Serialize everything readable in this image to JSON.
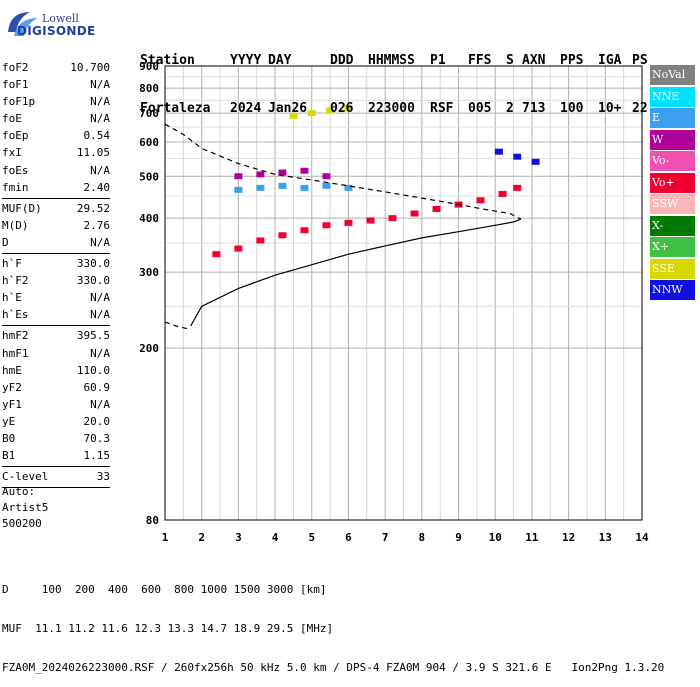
{
  "logo": {
    "line1": "Lowell",
    "line2": "DIGISONDE"
  },
  "header": {
    "labels": [
      "Station",
      "YYYY",
      "DAY",
      "DDD",
      "HHMMSS",
      "P1",
      "FFS",
      "S",
      "AXN",
      "PPS",
      "IGA",
      "PS"
    ],
    "values": [
      "Fortaleza",
      "2024",
      "Jan26",
      "026",
      "223000",
      "RSF",
      "005",
      "2",
      "713",
      "100",
      "10+",
      "22"
    ]
  },
  "params": {
    "group1": [
      {
        "name": "foF2",
        "value": "10.700"
      },
      {
        "name": "foF1",
        "value": "N/A"
      },
      {
        "name": "foF1p",
        "value": "N/A"
      },
      {
        "name": "foE",
        "value": "N/A"
      },
      {
        "name": "foEp",
        "value": "0.54"
      },
      {
        "name": "fxI",
        "value": "11.05"
      },
      {
        "name": "foEs",
        "value": "N/A"
      },
      {
        "name": "fmin",
        "value": "2.40"
      }
    ],
    "group2": [
      {
        "name": "MUF(D)",
        "value": "29.52"
      },
      {
        "name": "M(D)",
        "value": "2.76"
      },
      {
        "name": "D",
        "value": "N/A"
      }
    ],
    "group3": [
      {
        "name": "h`F",
        "value": "330.0"
      },
      {
        "name": "h`F2",
        "value": "330.0"
      },
      {
        "name": "h`E",
        "value": "N/A"
      },
      {
        "name": "h`Es",
        "value": "N/A"
      }
    ],
    "group4": [
      {
        "name": "hmF2",
        "value": "395.5"
      },
      {
        "name": "hmF1",
        "value": "N/A"
      },
      {
        "name": "hmE",
        "value": "110.0"
      },
      {
        "name": "yF2",
        "value": "60.9"
      },
      {
        "name": "yF1",
        "value": "N/A"
      },
      {
        "name": "yE",
        "value": "20.0"
      },
      {
        "name": "B0",
        "value": "70.3"
      },
      {
        "name": "B1",
        "value": "1.15"
      }
    ],
    "group5": [
      {
        "name": "C-level",
        "value": "33"
      }
    ]
  },
  "auto": {
    "line1": "Auto:",
    "line2": "Artist5",
    "line3": "500200"
  },
  "legend": [
    {
      "label": "NoVal",
      "color": "#808080"
    },
    {
      "label": "NNE",
      "color": "#00e0ff"
    },
    {
      "label": "E",
      "color": "#3ca0f0"
    },
    {
      "label": "W",
      "color": "#b0009c"
    },
    {
      "label": "Vo-",
      "color": "#f050b0"
    },
    {
      "label": "Vo+",
      "color": "#f00030"
    },
    {
      "label": "SSW",
      "color": "#f8b8b8"
    },
    {
      "label": "X-",
      "color": "#007a00"
    },
    {
      "label": "X+",
      "color": "#40c040"
    },
    {
      "label": "SSE",
      "color": "#d8d800"
    },
    {
      "label": "NNW",
      "color": "#1010e0"
    }
  ],
  "footer": {
    "line1": "D     100  200  400  600  800 1000 1500 3000 [km]",
    "line2": "MUF  11.1 11.2 11.6 12.3 13.3 14.7 18.9 29.5 [MHz]",
    "line3": "FZA0M_2024026223000.RSF / 260fx256h 50 kHz 5.0 km / DPS-4 FZA0M 904 / 3.9 S 321.6 E   Ion2Png 1.3.20"
  },
  "chart_data": {
    "type": "scatter",
    "xlim": [
      1,
      14
    ],
    "ylim": [
      80,
      900
    ],
    "x_ticks": [
      1,
      2,
      3,
      4,
      5,
      6,
      7,
      8,
      9,
      10,
      11,
      12,
      13,
      14
    ],
    "y_ticks": [
      80,
      200,
      300,
      400,
      500,
      600,
      700,
      800,
      900
    ],
    "y_scale": "log",
    "grid": true,
    "legend_position": "right",
    "traces": [
      {
        "name": "Vo+",
        "color": "#f00030",
        "x": [
          2.4,
          3.0,
          3.6,
          4.2,
          4.8,
          5.4,
          6.0,
          6.6,
          7.2,
          7.8,
          8.4,
          9.0,
          9.6,
          10.2,
          10.6
        ],
        "y": [
          330,
          340,
          355,
          365,
          375,
          385,
          390,
          395,
          400,
          410,
          420,
          430,
          440,
          455,
          470
        ]
      },
      {
        "name": "E",
        "color": "#3ca0f0",
        "x": [
          3.0,
          3.6,
          4.2,
          4.8,
          5.4,
          6.0
        ],
        "y": [
          465,
          470,
          475,
          470,
          475,
          470
        ]
      },
      {
        "name": "W",
        "color": "#b0009c",
        "x": [
          3.0,
          3.6,
          4.2,
          4.8,
          5.4
        ],
        "y": [
          500,
          505,
          510,
          515,
          500
        ]
      },
      {
        "name": "SSE",
        "color": "#d8d800",
        "x": [
          4.5,
          5.0,
          5.5,
          6.0
        ],
        "y": [
          690,
          700,
          710,
          720
        ]
      },
      {
        "name": "NNW",
        "color": "#1010e0",
        "x": [
          10.1,
          10.6,
          11.1
        ],
        "y": [
          570,
          555,
          540
        ]
      }
    ],
    "profile_solid": {
      "x": [
        1.7,
        2.0,
        3.0,
        4.0,
        5.0,
        6.0,
        7.0,
        8.0,
        9.0,
        10.0,
        10.5,
        10.7
      ],
      "y": [
        225,
        250,
        275,
        295,
        312,
        330,
        345,
        360,
        372,
        385,
        392,
        398
      ]
    },
    "profile_dashed": {
      "x": [
        1.0,
        1.5,
        2.0,
        3.0,
        4.0,
        5.0,
        6.0,
        7.0,
        8.0,
        9.0,
        9.8,
        10.4,
        10.7
      ],
      "y": [
        660,
        625,
        580,
        535,
        505,
        490,
        475,
        460,
        445,
        430,
        418,
        410,
        398
      ]
    },
    "profile_start_dashed": {
      "x": [
        1.0,
        1.3,
        1.6
      ],
      "y": [
        230,
        225,
        222
      ]
    }
  }
}
